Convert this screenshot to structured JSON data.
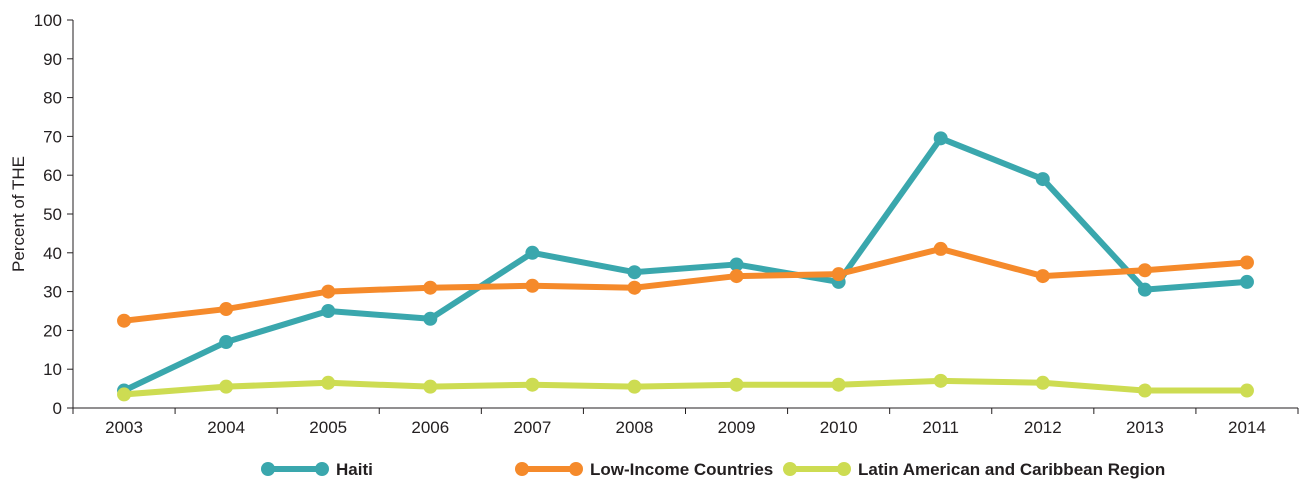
{
  "chart_data": {
    "type": "line",
    "ylabel": "Percent of THE",
    "xlabel": "",
    "ylim": [
      0,
      100
    ],
    "yticks": [
      0,
      10,
      20,
      30,
      40,
      50,
      60,
      70,
      80,
      90,
      100
    ],
    "x": [
      "2003",
      "2004",
      "2005",
      "2006",
      "2007",
      "2008",
      "2009",
      "2010",
      "2011",
      "2012",
      "2013",
      "2014"
    ],
    "grid": false,
    "legend_position": "bottom",
    "series": [
      {
        "name": "Haiti",
        "color": "#3aa7ad",
        "values": [
          4.5,
          17,
          25,
          23,
          40,
          35,
          37,
          32.5,
          69.5,
          59,
          30.5,
          32.5
        ]
      },
      {
        "name": "Low-Income Countries",
        "color": "#f58a2b",
        "values": [
          22.5,
          25.5,
          30,
          31,
          31.5,
          31,
          34,
          34.5,
          41,
          34,
          35.5,
          37.5
        ]
      },
      {
        "name": "Latin American and Caribbean Region",
        "color": "#cddc52",
        "values": [
          3.5,
          5.5,
          6.5,
          5.5,
          6,
          5.5,
          6,
          6,
          7,
          6.5,
          4.5,
          4.5
        ]
      }
    ]
  }
}
